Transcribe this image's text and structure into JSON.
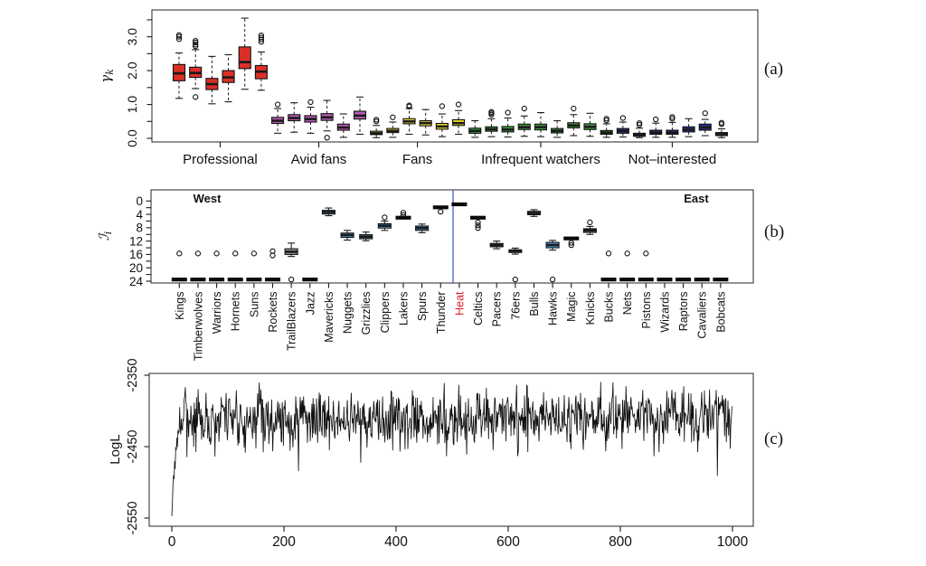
{
  "figure": {
    "background": "#ffffff",
    "panel_labels": [
      "(a)",
      "(b)",
      "(c)"
    ]
  },
  "chart_data": [
    {
      "panel": "a",
      "type": "boxplot",
      "ylabel": {
        "base": "γ",
        "sub": "k"
      },
      "yticks": {
        "step": 0.5,
        "min": 0,
        "max": 3.5,
        "labeled": [
          [
            0,
            "0.0"
          ],
          [
            1,
            "1.0"
          ],
          [
            2,
            "2.0"
          ],
          [
            3,
            "3.0"
          ]
        ]
      },
      "ylim": [
        0,
        3.7
      ],
      "grid": false,
      "groups": [
        {
          "label": "Professional",
          "color": "#DC2F25",
          "boxes": [
            {
              "med": 1.92,
              "q1": 1.7,
              "q3": 2.18,
              "lo": 1.18,
              "hi": 2.52,
              "out": [
                2.93,
                3.0,
                3.05
              ]
            },
            {
              "med": 1.93,
              "q1": 1.8,
              "q3": 2.1,
              "lo": 1.47,
              "hi": 2.62,
              "out": [
                1.22,
                2.72,
                2.77,
                2.83,
                2.88
              ]
            },
            {
              "med": 1.6,
              "q1": 1.44,
              "q3": 1.77,
              "lo": 1.02,
              "hi": 2.42,
              "out": []
            },
            {
              "med": 1.8,
              "q1": 1.65,
              "q3": 2.0,
              "lo": 1.08,
              "hi": 2.47,
              "out": []
            },
            {
              "med": 2.25,
              "q1": 2.06,
              "q3": 2.7,
              "lo": 1.45,
              "hi": 3.55,
              "out": []
            },
            {
              "med": 1.97,
              "q1": 1.76,
              "q3": 2.15,
              "lo": 1.42,
              "hi": 2.55,
              "out": [
                2.85,
                2.92,
                2.98,
                3.04
              ]
            }
          ]
        },
        {
          "label": "Avid fans",
          "color": "#B75AB5",
          "boxes": [
            {
              "med": 0.52,
              "q1": 0.44,
              "q3": 0.62,
              "lo": 0.15,
              "hi": 0.88,
              "out": [
                1.0
              ]
            },
            {
              "med": 0.6,
              "q1": 0.52,
              "q3": 0.7,
              "lo": 0.18,
              "hi": 1.05,
              "out": []
            },
            {
              "med": 0.57,
              "q1": 0.48,
              "q3": 0.67,
              "lo": 0.15,
              "hi": 0.92,
              "out": [
                1.07
              ]
            },
            {
              "med": 0.62,
              "q1": 0.53,
              "q3": 0.73,
              "lo": 0.22,
              "hi": 1.12,
              "out": [
                0.02
              ]
            },
            {
              "med": 0.32,
              "q1": 0.24,
              "q3": 0.42,
              "lo": 0.03,
              "hi": 0.72,
              "out": []
            },
            {
              "med": 0.67,
              "q1": 0.57,
              "q3": 0.8,
              "lo": 0.12,
              "hi": 1.22,
              "out": []
            }
          ]
        },
        {
          "label": "Fans",
          "color": "#EFE12D",
          "boxes": [
            {
              "med": 0.15,
              "q1": 0.11,
              "q3": 0.21,
              "lo": 0.02,
              "hi": 0.38,
              "out": [
                0.5,
                0.55
              ]
            },
            {
              "med": 0.22,
              "q1": 0.17,
              "q3": 0.29,
              "lo": 0.03,
              "hi": 0.48,
              "out": [
                0.62
              ]
            },
            {
              "med": 0.5,
              "q1": 0.43,
              "q3": 0.58,
              "lo": 0.12,
              "hi": 0.88,
              "out": [
                0.94,
                0.97
              ]
            },
            {
              "med": 0.45,
              "q1": 0.37,
              "q3": 0.52,
              "lo": 0.1,
              "hi": 0.85,
              "out": []
            },
            {
              "med": 0.35,
              "q1": 0.27,
              "q3": 0.44,
              "lo": 0.05,
              "hi": 0.72,
              "out": [
                0.95
              ]
            },
            {
              "med": 0.45,
              "q1": 0.38,
              "q3": 0.55,
              "lo": 0.12,
              "hi": 0.82,
              "out": [
                1.0
              ]
            }
          ]
        },
        {
          "label": "Infrequent watchers",
          "color": "#3FA03F",
          "boxes": [
            {
              "med": 0.22,
              "q1": 0.15,
              "q3": 0.3,
              "lo": 0.03,
              "hi": 0.52,
              "out": []
            },
            {
              "med": 0.27,
              "q1": 0.21,
              "q3": 0.34,
              "lo": 0.05,
              "hi": 0.58,
              "out": [
                0.7,
                0.74,
                0.78
              ]
            },
            {
              "med": 0.26,
              "q1": 0.19,
              "q3": 0.35,
              "lo": 0.04,
              "hi": 0.6,
              "out": [
                0.76
              ]
            },
            {
              "med": 0.33,
              "q1": 0.26,
              "q3": 0.42,
              "lo": 0.06,
              "hi": 0.66,
              "out": [
                0.88
              ]
            },
            {
              "med": 0.33,
              "q1": 0.25,
              "q3": 0.42,
              "lo": 0.05,
              "hi": 0.76,
              "out": []
            },
            {
              "med": 0.22,
              "q1": 0.16,
              "q3": 0.29,
              "lo": 0.03,
              "hi": 0.52,
              "out": []
            },
            {
              "med": 0.38,
              "q1": 0.31,
              "q3": 0.46,
              "lo": 0.08,
              "hi": 0.7,
              "out": [
                0.88
              ]
            },
            {
              "med": 0.34,
              "q1": 0.26,
              "q3": 0.43,
              "lo": 0.06,
              "hi": 0.74,
              "out": []
            },
            {
              "med": 0.17,
              "q1": 0.12,
              "q3": 0.23,
              "lo": 0.03,
              "hi": 0.43,
              "out": [
                0.53,
                0.58
              ]
            }
          ]
        },
        {
          "label": "Not–interested",
          "color": "#28348C",
          "boxes": [
            {
              "med": 0.22,
              "q1": 0.15,
              "q3": 0.29,
              "lo": 0.04,
              "hi": 0.48,
              "out": [
                0.6
              ]
            },
            {
              "med": 0.1,
              "q1": 0.06,
              "q3": 0.15,
              "lo": 0.02,
              "hi": 0.3,
              "out": [
                0.4,
                0.45
              ]
            },
            {
              "med": 0.17,
              "q1": 0.12,
              "q3": 0.24,
              "lo": 0.03,
              "hi": 0.45,
              "out": [
                0.56
              ]
            },
            {
              "med": 0.17,
              "q1": 0.12,
              "q3": 0.24,
              "lo": 0.03,
              "hi": 0.47,
              "out": [
                0.58,
                0.63
              ]
            },
            {
              "med": 0.26,
              "q1": 0.19,
              "q3": 0.34,
              "lo": 0.05,
              "hi": 0.58,
              "out": []
            },
            {
              "med": 0.32,
              "q1": 0.24,
              "q3": 0.42,
              "lo": 0.08,
              "hi": 0.56,
              "out": [
                0.74
              ]
            },
            {
              "med": 0.12,
              "q1": 0.08,
              "q3": 0.17,
              "lo": 0.02,
              "hi": 0.28,
              "out": [
                0.42,
                0.46
              ]
            }
          ]
        }
      ]
    },
    {
      "panel": "b",
      "type": "boxplot",
      "ylabel": {
        "base": "ℐ",
        "sub": "i"
      },
      "yticks": {
        "step": 2,
        "min": 0,
        "max": 24,
        "labeled": [
          0,
          4,
          8,
          12,
          16,
          20,
          24
        ]
      },
      "ylim_reversed": true,
      "region_labels": {
        "west": "West",
        "east": "East"
      },
      "divider_color": "#5566CE",
      "box_color": "#4F9FD5",
      "highlight_label_color": "#E02020",
      "teams": [
        {
          "name": "Kings",
          "conference": "West",
          "bar": 23.5,
          "out": [
            15.7
          ]
        },
        {
          "name": "Timberwolves",
          "conference": "West",
          "bar": 23.5,
          "out": [
            15.7
          ]
        },
        {
          "name": "Warriors",
          "conference": "West",
          "bar": 23.5,
          "out": [
            15.7
          ]
        },
        {
          "name": "Hornets",
          "conference": "West",
          "bar": 23.5,
          "out": [
            15.7
          ]
        },
        {
          "name": "Suns",
          "conference": "West",
          "bar": 23.5,
          "out": [
            15.7
          ]
        },
        {
          "name": "Rockets",
          "conference": "West",
          "bar": 23.5,
          "out": [
            15.0,
            16.3
          ]
        },
        {
          "name": "TrailBlazers",
          "conference": "West",
          "box": {
            "med": 15.2,
            "q1": 14.3,
            "q3": 16.0,
            "lo": 12.6,
            "hi": 16.6
          },
          "out": [
            23.5
          ],
          "color": "#9A9A9A"
        },
        {
          "name": "Jazz",
          "conference": "West",
          "bar": 23.5,
          "out": []
        },
        {
          "name": "Mavericks",
          "conference": "West",
          "box": {
            "med": 3.3,
            "q1": 2.8,
            "q3": 3.9,
            "lo": 2.1,
            "hi": 4.4
          },
          "out": []
        },
        {
          "name": "Nuggets",
          "conference": "West",
          "box": {
            "med": 10.2,
            "q1": 9.6,
            "q3": 10.9,
            "lo": 8.8,
            "hi": 11.7
          },
          "out": []
        },
        {
          "name": "Grizzlies",
          "conference": "West",
          "box": {
            "med": 10.7,
            "q1": 10.1,
            "q3": 11.3,
            "lo": 9.3,
            "hi": 11.9
          },
          "out": []
        },
        {
          "name": "Clippers",
          "conference": "West",
          "box": {
            "med": 7.4,
            "q1": 6.8,
            "q3": 8.1,
            "lo": 6.0,
            "hi": 8.8
          },
          "out": [
            4.9
          ]
        },
        {
          "name": "Lakers",
          "conference": "West",
          "bar": 5.0,
          "out": [
            3.5,
            4.2
          ]
        },
        {
          "name": "Spurs",
          "conference": "West",
          "box": {
            "med": 8.1,
            "q1": 7.5,
            "q3": 8.8,
            "lo": 6.9,
            "hi": 9.5
          },
          "out": []
        },
        {
          "name": "Thunder",
          "conference": "West",
          "bar": 1.9,
          "out": [
            3.2
          ]
        },
        {
          "name": "Heat",
          "conference": "East",
          "bar": 1.0,
          "out": [],
          "label_color": "#E02020"
        },
        {
          "name": "Celtics",
          "conference": "East",
          "bar": 5.0,
          "out": [
            6.4,
            7.3,
            8.1
          ]
        },
        {
          "name": "Pacers",
          "conference": "East",
          "box": {
            "med": 13.2,
            "q1": 12.7,
            "q3": 13.7,
            "lo": 12.0,
            "hi": 14.3
          },
          "out": []
        },
        {
          "name": "76ers",
          "conference": "East",
          "box": {
            "med": 15.0,
            "q1": 14.6,
            "q3": 15.4,
            "lo": 14.1,
            "hi": 15.9
          },
          "out": [
            23.5
          ]
        },
        {
          "name": "Bulls",
          "conference": "East",
          "box": {
            "med": 3.6,
            "q1": 3.1,
            "q3": 4.1,
            "lo": 2.6,
            "hi": 4.6
          },
          "out": []
        },
        {
          "name": "Hawks",
          "conference": "East",
          "box": {
            "med": 13.2,
            "q1": 12.4,
            "q3": 14.0,
            "lo": 11.8,
            "hi": 14.7
          },
          "out": [
            23.5
          ]
        },
        {
          "name": "Magic",
          "conference": "East",
          "bar": 11.2,
          "out": [
            12.5,
            13.2
          ]
        },
        {
          "name": "Knicks",
          "conference": "East",
          "box": {
            "med": 8.8,
            "q1": 8.3,
            "q3": 9.4,
            "lo": 7.6,
            "hi": 10.0
          },
          "out": [
            6.4
          ]
        },
        {
          "name": "Bucks",
          "conference": "East",
          "bar": 23.5,
          "out": [
            15.7
          ]
        },
        {
          "name": "Nets",
          "conference": "East",
          "bar": 23.5,
          "out": [
            15.7
          ]
        },
        {
          "name": "Pistons",
          "conference": "East",
          "bar": 23.5,
          "out": [
            15.7
          ]
        },
        {
          "name": "Wizards",
          "conference": "East",
          "bar": 23.5,
          "out": []
        },
        {
          "name": "Raptors",
          "conference": "East",
          "bar": 23.5,
          "out": []
        },
        {
          "name": "Cavaliers",
          "conference": "East",
          "bar": 23.5,
          "out": []
        },
        {
          "name": "Bobcats",
          "conference": "East",
          "bar": 23.5,
          "out": []
        }
      ]
    },
    {
      "panel": "c",
      "type": "line",
      "ylabel": "LogL",
      "yticks": [
        -2350,
        -2450,
        -2550
      ],
      "xticks": [
        0,
        200,
        400,
        600,
        800,
        1000
      ],
      "xlim": [
        0,
        1000
      ],
      "ylim": [
        -2560,
        -2345
      ],
      "line_color": "#111111",
      "trace_params": {
        "n": 1000,
        "start": -2550,
        "plateau": -2410,
        "decay": 6,
        "noise": 40,
        "spike_prob": 0.035,
        "spike_amp": 60,
        "bump_prob": 0.008,
        "bump_amp": 22,
        "seed": 7
      }
    }
  ]
}
